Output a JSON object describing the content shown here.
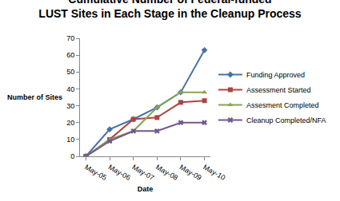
{
  "chart_data": {
    "type": "line",
    "title": "Cumulative Number of Federal-funded\nLUST Sites in Each Stage in the Cleanup Process",
    "x_label": "Date",
    "y_label": "Number of Sites",
    "categories": [
      "May-05",
      "May-06",
      "May-07",
      "May-08",
      "May-09",
      "May-10"
    ],
    "series": [
      {
        "name": "Funding Approved",
        "color": "#4572a7",
        "marker": "diamond",
        "values": [
          0,
          16,
          22,
          29,
          38,
          63
        ]
      },
      {
        "name": "Assessment Started",
        "color": "#aa4643",
        "marker": "square",
        "values": [
          0,
          10,
          22,
          23,
          32,
          33
        ]
      },
      {
        "name": "Assesment Completed",
        "color": "#89a54e",
        "marker": "triangle-up",
        "values": [
          0,
          10,
          15,
          29,
          38,
          38
        ]
      },
      {
        "name": "Cleanup Completed/NFA",
        "color": "#71588f",
        "marker": "x",
        "values": [
          0,
          9,
          15,
          15,
          20,
          20
        ]
      }
    ],
    "ylim": [
      0,
      70
    ],
    "yticks": [
      0,
      10,
      20,
      30,
      40,
      50,
      60,
      70
    ],
    "grid": false,
    "legend": "right"
  }
}
